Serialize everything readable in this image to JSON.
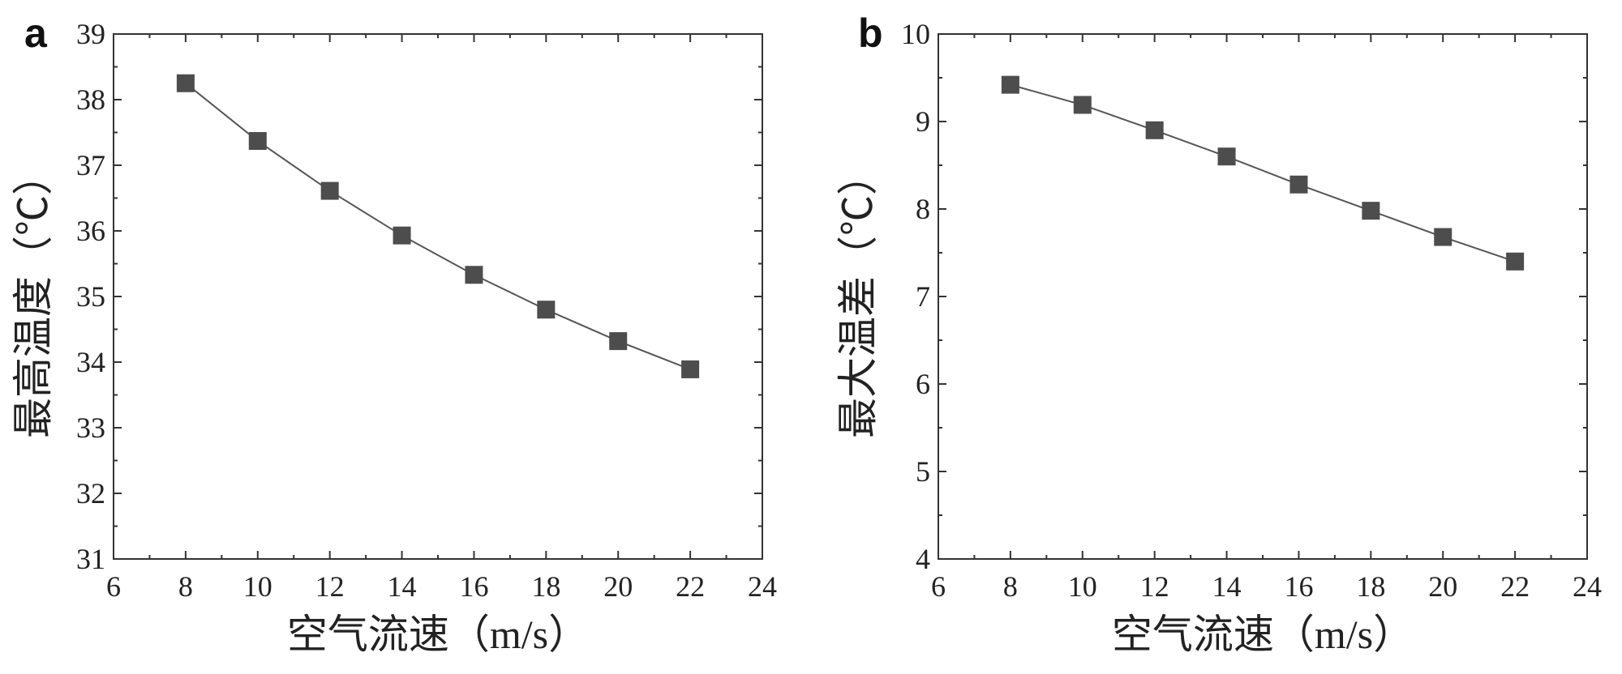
{
  "chart_data": [
    {
      "type": "line",
      "panel_label": "a",
      "title": "",
      "xlabel": "空气流速（m/s）",
      "ylabel": "最高温度（℃）",
      "xlim": [
        6,
        24
      ],
      "ylim": [
        31,
        39
      ],
      "xticks": [
        6,
        8,
        10,
        12,
        14,
        16,
        18,
        20,
        22,
        24
      ],
      "yticks": [
        31,
        32,
        33,
        34,
        35,
        36,
        37,
        38,
        39
      ],
      "grid": false,
      "series": [
        {
          "name": "最高温度",
          "marker": "square",
          "color": "#4d4d4d",
          "x": [
            8,
            10,
            12,
            14,
            16,
            18,
            20,
            22
          ],
          "y": [
            38.25,
            37.37,
            36.61,
            35.93,
            35.33,
            34.8,
            34.32,
            33.89
          ]
        }
      ]
    },
    {
      "type": "line",
      "panel_label": "b",
      "title": "",
      "xlabel": "空气流速（m/s）",
      "ylabel": "最大温差（℃）",
      "xlim": [
        6,
        24
      ],
      "ylim": [
        4,
        10
      ],
      "xticks": [
        6,
        8,
        10,
        12,
        14,
        16,
        18,
        20,
        22,
        24
      ],
      "yticks": [
        4,
        5,
        6,
        7,
        8,
        9,
        10
      ],
      "grid": false,
      "series": [
        {
          "name": "最大温差",
          "marker": "square",
          "color": "#4d4d4d",
          "x": [
            8,
            10,
            12,
            14,
            16,
            18,
            20,
            22
          ],
          "y": [
            9.42,
            9.19,
            8.9,
            8.6,
            8.28,
            7.98,
            7.68,
            7.4
          ]
        }
      ]
    }
  ]
}
